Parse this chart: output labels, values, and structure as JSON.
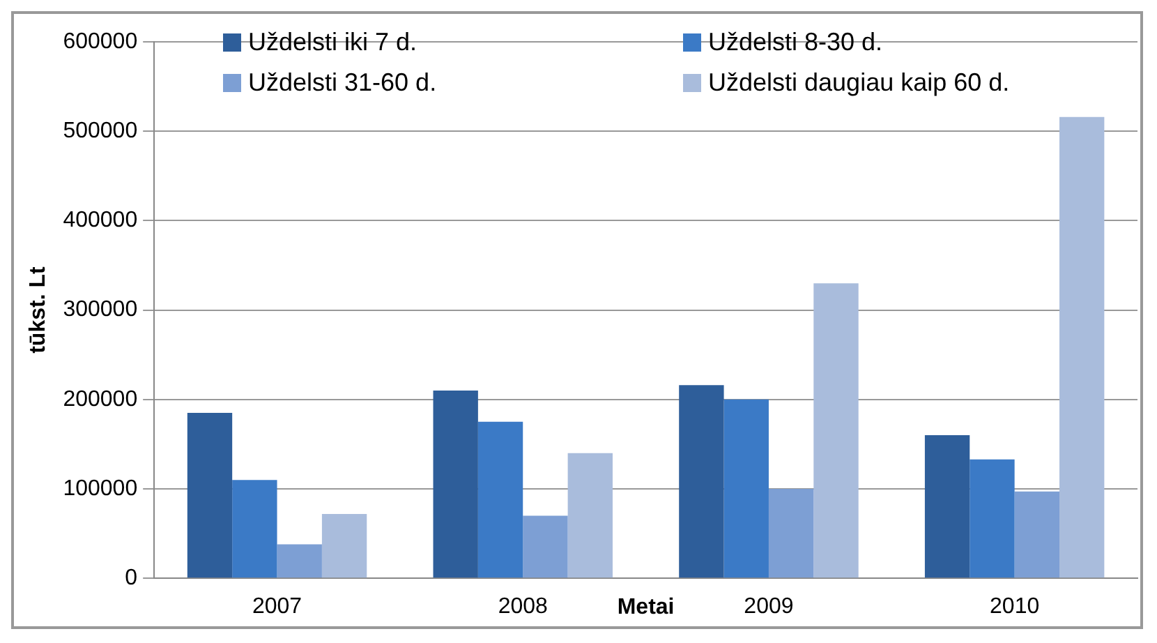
{
  "chart_data": {
    "type": "bar",
    "xlabel": "Metai",
    "ylabel": "tūkst. Lt",
    "categories": [
      "2007",
      "2008",
      "2009",
      "2010"
    ],
    "series": [
      {
        "name": "Uždelsti iki 7 d.",
        "color": "#2e5e9a",
        "values": [
          185000,
          210000,
          216000,
          160000
        ]
      },
      {
        "name": "Uždelsti 8-30 d.",
        "color": "#3b7ac6",
        "values": [
          110000,
          175000,
          200000,
          133000
        ]
      },
      {
        "name": "Uždelsti 31-60 d.",
        "color": "#7d9fd4",
        "values": [
          38000,
          70000,
          100000,
          97000
        ]
      },
      {
        "name": "Uždelsti daugiau kaip 60 d.",
        "color": "#a9bcdc",
        "values": [
          72000,
          140000,
          330000,
          516000
        ]
      }
    ],
    "ylim": [
      0,
      600000
    ],
    "yticks": [
      0,
      100000,
      200000,
      300000,
      400000,
      500000,
      600000
    ],
    "grid": "y",
    "legend": "top"
  }
}
